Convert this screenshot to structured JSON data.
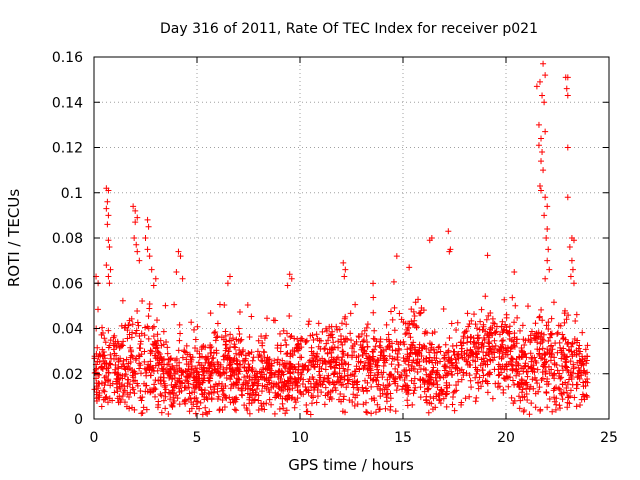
{
  "chart_data": {
    "type": "scatter",
    "title": "Day 316 of 2011, Rate Of TEC Index for receiver p021",
    "xlabel": "GPS time / hours",
    "ylabel": "ROTI / TECUs",
    "xlim": [
      0,
      25
    ],
    "ylim": [
      0,
      0.16
    ],
    "xticks": [
      0,
      5,
      10,
      15,
      20,
      25
    ],
    "xtick_labels": [
      "0",
      "5",
      "10",
      "15",
      "20",
      "25"
    ],
    "yticks": [
      0,
      0.02,
      0.04,
      0.06,
      0.08,
      0.1,
      0.12,
      0.14,
      0.16
    ],
    "ytick_labels": [
      "0",
      "0.02",
      "0.04",
      "0.06",
      "0.08",
      "0.1",
      "0.12",
      "0.14",
      "0.16"
    ],
    "grid": true,
    "marker": "+",
    "color": "#ff0000",
    "series": [
      {
        "name": "ROTI",
        "profile": [
          {
            "t": 0.0,
            "base": 0.02,
            "spread": 0.014
          },
          {
            "t": 0.5,
            "base": 0.022,
            "spread": 0.016
          },
          {
            "t": 1.0,
            "base": 0.02,
            "spread": 0.014
          },
          {
            "t": 2.0,
            "base": 0.024,
            "spread": 0.018
          },
          {
            "t": 2.7,
            "base": 0.026,
            "spread": 0.02
          },
          {
            "t": 3.5,
            "base": 0.02,
            "spread": 0.014
          },
          {
            "t": 4.5,
            "base": 0.018,
            "spread": 0.012
          },
          {
            "t": 6.0,
            "base": 0.02,
            "spread": 0.014
          },
          {
            "t": 8.0,
            "base": 0.019,
            "spread": 0.012
          },
          {
            "t": 10.0,
            "base": 0.02,
            "spread": 0.013
          },
          {
            "t": 12.0,
            "base": 0.024,
            "spread": 0.015
          },
          {
            "t": 14.0,
            "base": 0.022,
            "spread": 0.014
          },
          {
            "t": 15.5,
            "base": 0.026,
            "spread": 0.016
          },
          {
            "t": 17.0,
            "base": 0.02,
            "spread": 0.013
          },
          {
            "t": 18.5,
            "base": 0.03,
            "spread": 0.015
          },
          {
            "t": 20.0,
            "base": 0.028,
            "spread": 0.015
          },
          {
            "t": 21.0,
            "base": 0.022,
            "spread": 0.015
          },
          {
            "t": 22.0,
            "base": 0.025,
            "spread": 0.018
          },
          {
            "t": 23.0,
            "base": 0.022,
            "spread": 0.016
          },
          {
            "t": 24.0,
            "base": 0.018,
            "spread": 0.013
          }
        ],
        "peaks": [
          {
            "x": 0.1,
            "y": 0.063
          },
          {
            "x": 0.2,
            "y": 0.06
          },
          {
            "x": 0.6,
            "y": 0.102
          },
          {
            "x": 0.7,
            "y": 0.101
          },
          {
            "x": 0.65,
            "y": 0.096
          },
          {
            "x": 0.6,
            "y": 0.093
          },
          {
            "x": 0.7,
            "y": 0.09
          },
          {
            "x": 0.65,
            "y": 0.086
          },
          {
            "x": 0.7,
            "y": 0.079
          },
          {
            "x": 0.75,
            "y": 0.076
          },
          {
            "x": 0.6,
            "y": 0.068
          },
          {
            "x": 0.8,
            "y": 0.066
          },
          {
            "x": 0.7,
            "y": 0.063
          },
          {
            "x": 0.75,
            "y": 0.06
          },
          {
            "x": 1.9,
            "y": 0.094
          },
          {
            "x": 2.0,
            "y": 0.092
          },
          {
            "x": 2.1,
            "y": 0.089
          },
          {
            "x": 2.0,
            "y": 0.087
          },
          {
            "x": 1.95,
            "y": 0.08
          },
          {
            "x": 2.05,
            "y": 0.077
          },
          {
            "x": 2.1,
            "y": 0.074
          },
          {
            "x": 2.2,
            "y": 0.07
          },
          {
            "x": 2.6,
            "y": 0.088
          },
          {
            "x": 2.65,
            "y": 0.085
          },
          {
            "x": 2.5,
            "y": 0.08
          },
          {
            "x": 2.6,
            "y": 0.075
          },
          {
            "x": 2.7,
            "y": 0.072
          },
          {
            "x": 2.8,
            "y": 0.066
          },
          {
            "x": 3.0,
            "y": 0.062
          },
          {
            "x": 2.9,
            "y": 0.059
          },
          {
            "x": 4.1,
            "y": 0.074
          },
          {
            "x": 4.2,
            "y": 0.072
          },
          {
            "x": 4.0,
            "y": 0.065
          },
          {
            "x": 4.3,
            "y": 0.062
          },
          {
            "x": 6.6,
            "y": 0.063
          },
          {
            "x": 6.5,
            "y": 0.06
          },
          {
            "x": 9.5,
            "y": 0.064
          },
          {
            "x": 9.6,
            "y": 0.062
          },
          {
            "x": 9.4,
            "y": 0.059
          },
          {
            "x": 12.1,
            "y": 0.069
          },
          {
            "x": 12.2,
            "y": 0.066
          },
          {
            "x": 12.15,
            "y": 0.063
          },
          {
            "x": 14.7,
            "y": 0.072
          },
          {
            "x": 15.3,
            "y": 0.067
          },
          {
            "x": 16.4,
            "y": 0.08
          },
          {
            "x": 16.3,
            "y": 0.079
          },
          {
            "x": 17.2,
            "y": 0.083
          },
          {
            "x": 17.3,
            "y": 0.075
          },
          {
            "x": 17.25,
            "y": 0.074
          },
          {
            "x": 20.4,
            "y": 0.065
          },
          {
            "x": 21.5,
            "y": 0.147
          },
          {
            "x": 21.65,
            "y": 0.149
          },
          {
            "x": 21.8,
            "y": 0.157
          },
          {
            "x": 21.9,
            "y": 0.152
          },
          {
            "x": 21.75,
            "y": 0.143
          },
          {
            "x": 21.85,
            "y": 0.14
          },
          {
            "x": 21.6,
            "y": 0.13
          },
          {
            "x": 21.9,
            "y": 0.127
          },
          {
            "x": 21.7,
            "y": 0.124
          },
          {
            "x": 21.6,
            "y": 0.121
          },
          {
            "x": 21.75,
            "y": 0.118
          },
          {
            "x": 21.7,
            "y": 0.114
          },
          {
            "x": 21.8,
            "y": 0.11
          },
          {
            "x": 21.65,
            "y": 0.103
          },
          {
            "x": 21.7,
            "y": 0.101
          },
          {
            "x": 21.9,
            "y": 0.098
          },
          {
            "x": 22.0,
            "y": 0.094
          },
          {
            "x": 21.85,
            "y": 0.09
          },
          {
            "x": 22.0,
            "y": 0.084
          },
          {
            "x": 21.95,
            "y": 0.08
          },
          {
            "x": 22.05,
            "y": 0.075
          },
          {
            "x": 22.0,
            "y": 0.07
          },
          {
            "x": 22.1,
            "y": 0.066
          },
          {
            "x": 21.9,
            "y": 0.062
          },
          {
            "x": 22.9,
            "y": 0.151
          },
          {
            "x": 23.0,
            "y": 0.151
          },
          {
            "x": 22.95,
            "y": 0.146
          },
          {
            "x": 23.0,
            "y": 0.143
          },
          {
            "x": 23.0,
            "y": 0.12
          },
          {
            "x": 23.0,
            "y": 0.098
          },
          {
            "x": 23.2,
            "y": 0.08
          },
          {
            "x": 23.3,
            "y": 0.079
          },
          {
            "x": 23.1,
            "y": 0.076
          },
          {
            "x": 23.2,
            "y": 0.07
          },
          {
            "x": 23.25,
            "y": 0.066
          },
          {
            "x": 23.15,
            "y": 0.063
          },
          {
            "x": 23.3,
            "y": 0.06
          }
        ]
      }
    ]
  }
}
